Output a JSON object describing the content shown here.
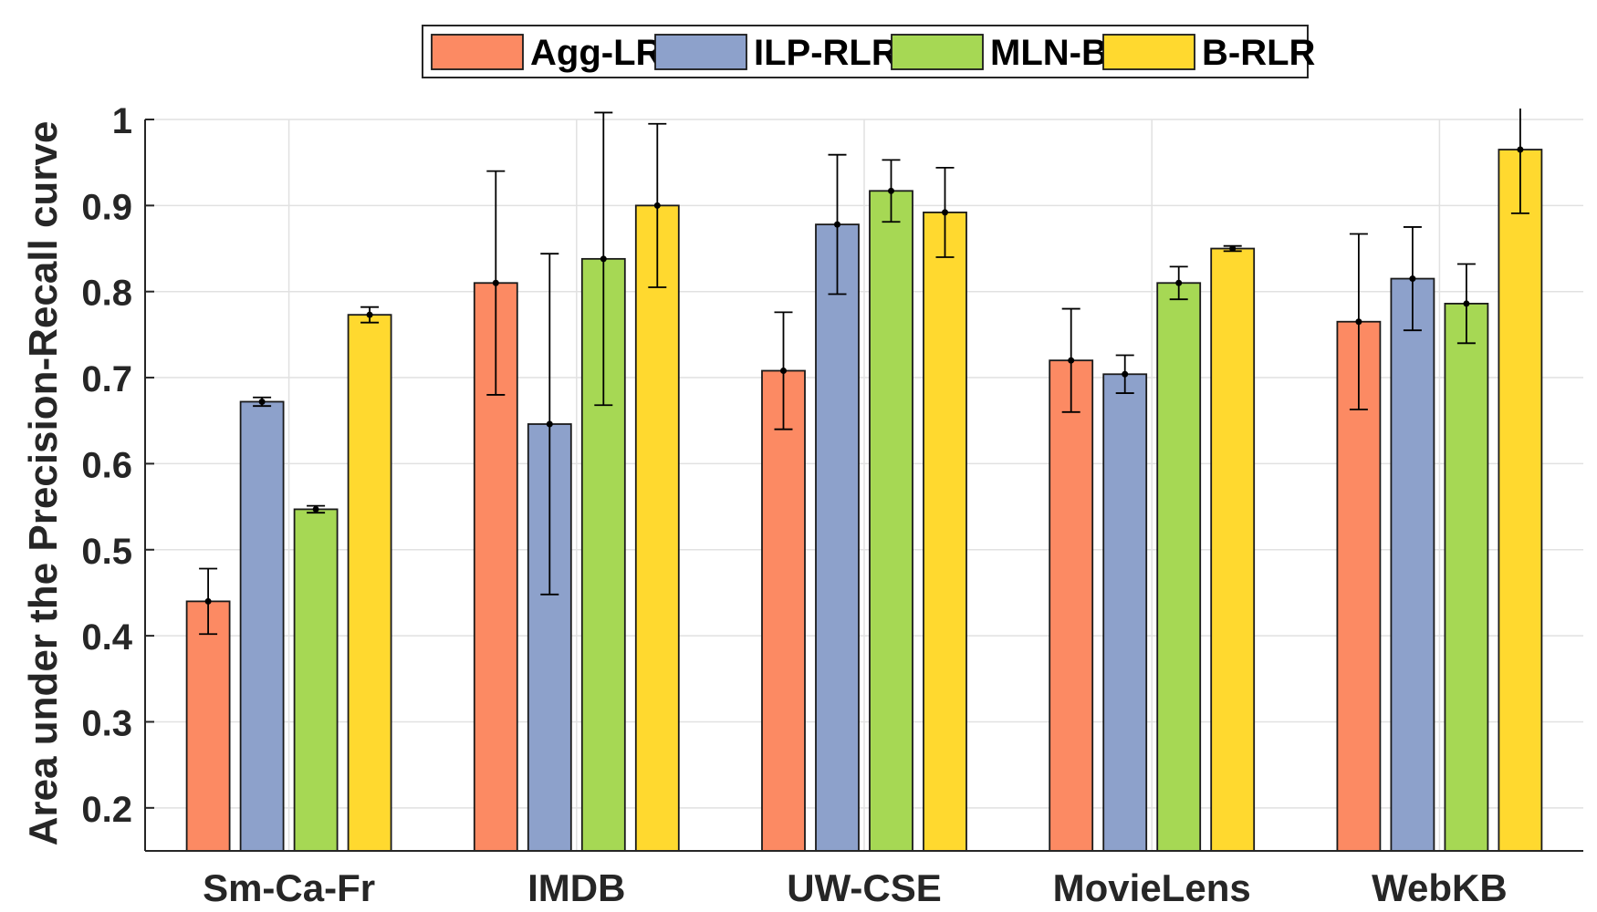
{
  "chart_data": {
    "type": "bar",
    "title": "",
    "xlabel": "",
    "ylabel": "Area under the Precision-Recall curve",
    "ylim": [
      0.15,
      1.0
    ],
    "yticks": [
      "0.2",
      "0.3",
      "0.4",
      "0.5",
      "0.6",
      "0.7",
      "0.8",
      "0.9",
      "1"
    ],
    "grid": true,
    "legend_position": "top-center",
    "categories": [
      "Sm-Ca-Fr",
      "IMDB",
      "UW-CSE",
      "MovieLens",
      "WebKB"
    ],
    "series": [
      {
        "name": "Agg-LR",
        "color": "#FC8A63",
        "values": [
          0.44,
          0.81,
          0.708,
          0.72,
          0.765
        ],
        "errors": [
          0.038,
          0.13,
          0.068,
          0.06,
          0.102
        ]
      },
      {
        "name": "ILP-RLR",
        "color": "#8DA1CB",
        "values": [
          0.672,
          0.646,
          0.878,
          0.704,
          0.815
        ],
        "errors": [
          0.005,
          0.198,
          0.081,
          0.022,
          0.06
        ]
      },
      {
        "name": "MLN-B",
        "color": "#A6D854",
        "values": [
          0.547,
          0.838,
          0.917,
          0.81,
          0.786
        ],
        "errors": [
          0.004,
          0.17,
          0.036,
          0.019,
          0.046
        ]
      },
      {
        "name": "B-RLR",
        "color": "#FFD92F",
        "values": [
          0.773,
          0.9,
          0.892,
          0.85,
          0.965
        ],
        "errors": [
          0.009,
          0.095,
          0.052,
          0.003,
          0.074
        ]
      }
    ]
  }
}
